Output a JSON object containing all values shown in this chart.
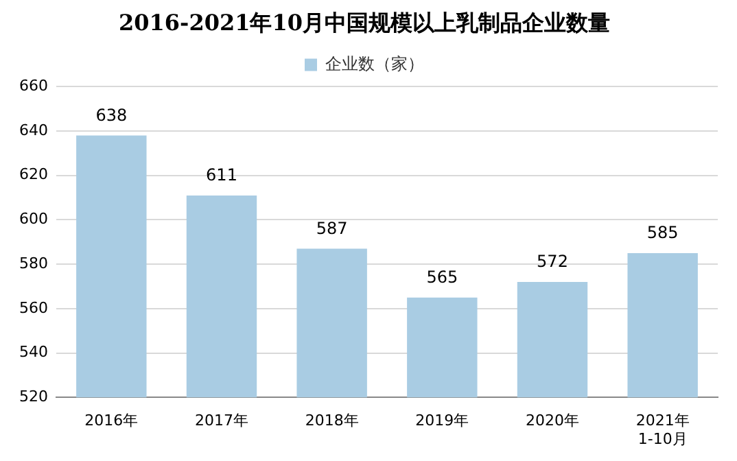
{
  "chart_data": {
    "type": "bar",
    "title": "2016-2021年10月中国规模以上乳制品企业数量",
    "categories": [
      "2016年",
      "2017年",
      "2018年",
      "2019年",
      "2020年",
      "2021年\n1-10月"
    ],
    "series": [
      {
        "name": "企业数（家）",
        "color": "#a9cce3",
        "values": [
          638,
          611,
          587,
          565,
          572,
          585
        ]
      }
    ],
    "ylim": [
      520,
      660
    ],
    "yticks": [
      520,
      540,
      560,
      580,
      600,
      620,
      640,
      660
    ],
    "grid": "y",
    "legend": "top",
    "data_labels": true
  }
}
